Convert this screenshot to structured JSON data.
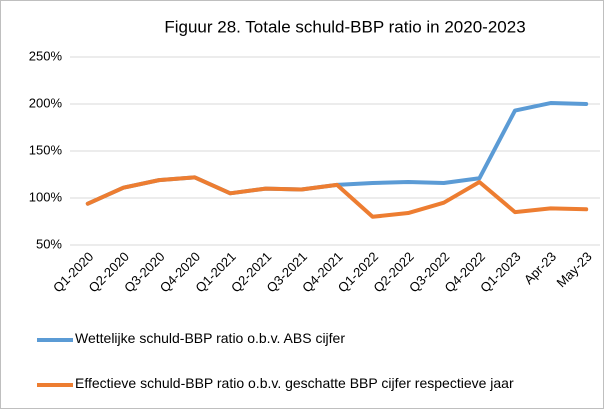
{
  "chart_data": {
    "type": "line",
    "title": "Figuur 28. Totale schuld-BBP ratio in 2020-2023",
    "categories": [
      "Q1-2020",
      "Q2-2020",
      "Q3-2020",
      "Q4-2020",
      "Q1-2021",
      "Q2-2021",
      "Q3-2021",
      "Q4-2021",
      "Q1-2022",
      "Q2-2022",
      "Q3-2022",
      "Q4-2022",
      "Q1-2023",
      "Apr-23",
      "May-23"
    ],
    "series": [
      {
        "name": "Wettelijke schuld-BBP ratio o.b.v. ABS cijfer",
        "color": "#5b9bd5",
        "values": [
          94,
          111,
          119,
          122,
          105,
          110,
          109,
          114,
          116,
          117,
          116,
          121,
          193,
          201,
          200
        ]
      },
      {
        "name": "Effectieve schuld-BBP ratio o.b.v. geschatte BBP cijfer respectieve jaar",
        "color": "#ed7d31",
        "values": [
          94,
          111,
          119,
          122,
          105,
          110,
          109,
          114,
          80,
          84,
          95,
          117,
          85,
          89,
          88
        ]
      }
    ],
    "ylim": [
      50,
      250
    ],
    "yticks": [
      {
        "value": 50,
        "label": "50%"
      },
      {
        "value": 100,
        "label": "100%"
      },
      {
        "value": 150,
        "label": "150%"
      },
      {
        "value": 200,
        "label": "200%"
      },
      {
        "value": 250,
        "label": "250%"
      }
    ],
    "grid": true
  }
}
